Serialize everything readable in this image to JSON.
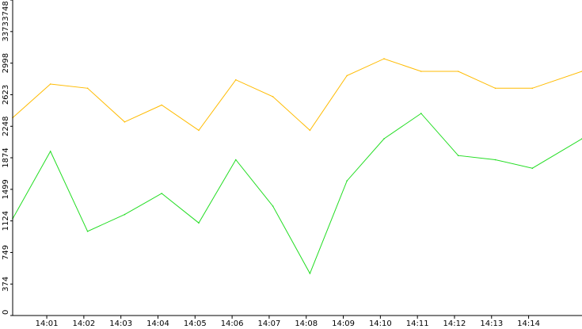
{
  "chart_data": {
    "type": "line",
    "title": "",
    "xlabel": "",
    "ylabel": "",
    "ylim": [
      0,
      3748
    ],
    "grid": false,
    "y_ticks": [
      0,
      374,
      749,
      1124,
      1499,
      1874,
      2248,
      2623,
      2998,
      3373,
      3748
    ],
    "x_ticks": [
      "14:01",
      "14:02",
      "14:03",
      "14:04",
      "14:05",
      "14:06",
      "14:07",
      "14:08",
      "14:09",
      "14:10",
      "14:11",
      "14:12",
      "14:13",
      "14:14"
    ],
    "x_range_minutes": [
      0.08,
      15.44
    ],
    "points_per_series": 16,
    "series": [
      {
        "color": "#ffbb00",
        "x_minutes": [
          0.08,
          1.1,
          2.1,
          3.1,
          4.1,
          5.1,
          6.1,
          7.1,
          8.1,
          9.1,
          10.1,
          11.1,
          12.1,
          13.1,
          14.1,
          15.44
        ],
        "values": [
          2350,
          2750,
          2700,
          2300,
          2500,
          2200,
          2800,
          2600,
          2200,
          2850,
          3050,
          2900,
          2900,
          2700,
          2700,
          2900
        ]
      },
      {
        "color": "#22dd22",
        "x_minutes": [
          0.08,
          1.1,
          2.1,
          3.1,
          4.1,
          5.1,
          6.1,
          7.1,
          8.1,
          9.1,
          10.1,
          11.1,
          12.1,
          13.1,
          14.1,
          15.44
        ],
        "values": [
          1150,
          1950,
          1000,
          1200,
          1450,
          1100,
          1850,
          1300,
          500,
          1600,
          2100,
          2400,
          1900,
          1850,
          1750,
          2100
        ]
      }
    ]
  },
  "colors": {
    "background": "#ffffff",
    "frame": "#000000"
  }
}
